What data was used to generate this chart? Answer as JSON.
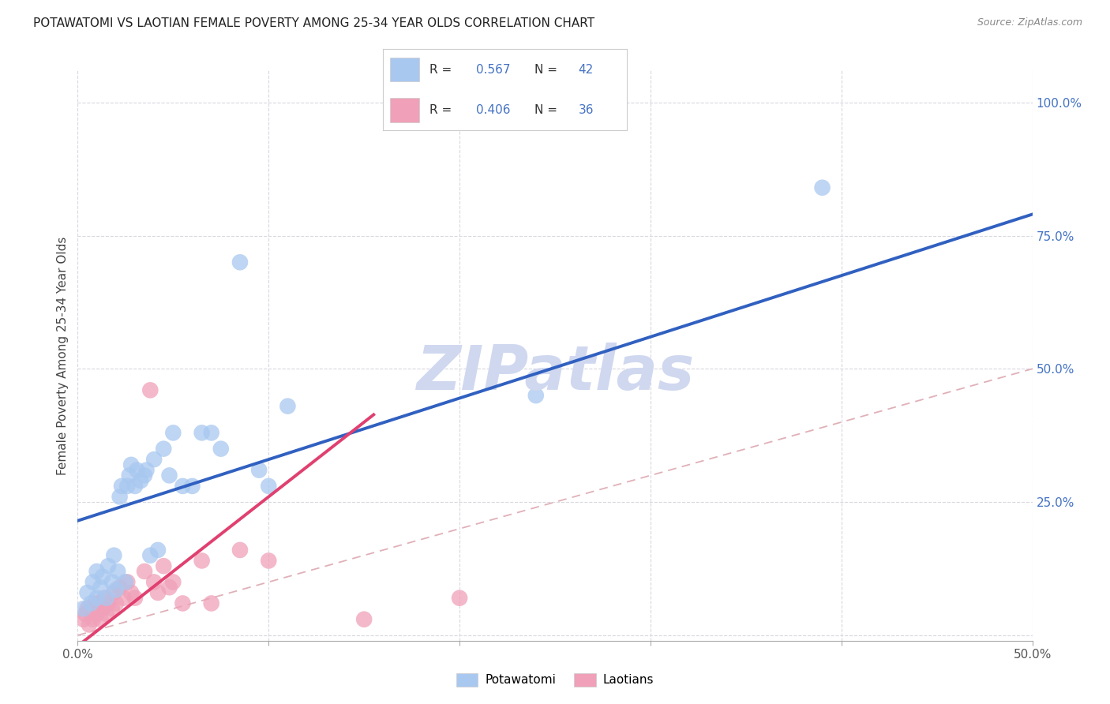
{
  "title": "POTAWATOMI VS LAOTIAN FEMALE POVERTY AMONG 25-34 YEAR OLDS CORRELATION CHART",
  "source": "Source: ZipAtlas.com",
  "ylabel": "Female Poverty Among 25-34 Year Olds",
  "xlim": [
    0.0,
    0.5
  ],
  "ylim": [
    -0.01,
    1.06
  ],
  "xticks": [
    0.0,
    0.1,
    0.2,
    0.3,
    0.4,
    0.5
  ],
  "yticks": [
    0.0,
    0.25,
    0.5,
    0.75,
    1.0
  ],
  "xticklabels_show": [
    "0.0%",
    "",
    "",
    "",
    "",
    "50.0%"
  ],
  "yticklabels": [
    "",
    "25.0%",
    "50.0%",
    "75.0%",
    "100.0%"
  ],
  "blue_color": "#a8c8f0",
  "pink_color": "#f0a0b8",
  "blue_line_color": "#3060c0",
  "pink_line_color": "#e04070",
  "ref_line_color": "#e0b0b8",
  "R_blue": 0.567,
  "N_blue": 42,
  "R_pink": 0.406,
  "N_pink": 36,
  "blue_intercept": 0.215,
  "blue_slope": 1.15,
  "pink_intercept": -0.02,
  "pink_slope": 2.8,
  "pink_line_xmax": 0.155,
  "watermark": "ZIPatlas",
  "watermark_color": "#d0d8f0",
  "background_color": "#ffffff",
  "grid_color": "#d8d8e0",
  "potawatomi_x": [
    0.003,
    0.005,
    0.007,
    0.008,
    0.01,
    0.01,
    0.012,
    0.013,
    0.015,
    0.016,
    0.018,
    0.019,
    0.02,
    0.021,
    0.022,
    0.023,
    0.025,
    0.026,
    0.027,
    0.028,
    0.03,
    0.031,
    0.033,
    0.035,
    0.036,
    0.038,
    0.04,
    0.042,
    0.045,
    0.048,
    0.05,
    0.055,
    0.06,
    0.065,
    0.07,
    0.075,
    0.085,
    0.095,
    0.1,
    0.11,
    0.24,
    0.39
  ],
  "potawatomi_y": [
    0.05,
    0.08,
    0.06,
    0.1,
    0.07,
    0.12,
    0.09,
    0.11,
    0.07,
    0.13,
    0.1,
    0.15,
    0.085,
    0.12,
    0.26,
    0.28,
    0.1,
    0.28,
    0.3,
    0.32,
    0.28,
    0.31,
    0.29,
    0.3,
    0.31,
    0.15,
    0.33,
    0.16,
    0.35,
    0.3,
    0.38,
    0.28,
    0.28,
    0.38,
    0.38,
    0.35,
    0.7,
    0.31,
    0.28,
    0.43,
    0.45,
    0.84
  ],
  "laotian_x": [
    0.003,
    0.004,
    0.005,
    0.006,
    0.007,
    0.008,
    0.009,
    0.01,
    0.011,
    0.012,
    0.013,
    0.014,
    0.015,
    0.016,
    0.018,
    0.019,
    0.02,
    0.022,
    0.024,
    0.026,
    0.028,
    0.03,
    0.035,
    0.038,
    0.04,
    0.042,
    0.045,
    0.048,
    0.05,
    0.055,
    0.065,
    0.07,
    0.085,
    0.1,
    0.15,
    0.2
  ],
  "laotian_y": [
    0.03,
    0.04,
    0.05,
    0.02,
    0.05,
    0.03,
    0.06,
    0.04,
    0.06,
    0.03,
    0.05,
    0.07,
    0.04,
    0.06,
    0.05,
    0.08,
    0.06,
    0.09,
    0.07,
    0.1,
    0.08,
    0.07,
    0.12,
    0.46,
    0.1,
    0.08,
    0.13,
    0.09,
    0.1,
    0.06,
    0.14,
    0.06,
    0.16,
    0.14,
    0.03,
    0.07
  ]
}
